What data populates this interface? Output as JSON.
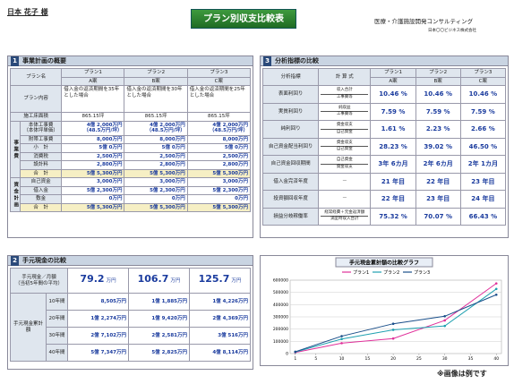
{
  "header": {
    "customer": "日本 花子 様",
    "title": "プラン別収支比較表",
    "tagline": "医療・介護施設開発コンサルティング",
    "company": "日本〇〇ビジネス株式会社",
    "footnote": "※画像は例です"
  },
  "s1": {
    "number": "1",
    "heading": "事業計画の概要",
    "name_label": "プラン名",
    "plans": [
      "プラン1",
      "プラン2",
      "プラン3"
    ],
    "codes": [
      "A案",
      "B案",
      "C案"
    ],
    "content_label": "プラン内容",
    "contents": [
      "借入金の返済期間を35年とした場合",
      "借入金の返済期間を30年とした場合",
      "借入金の返済期間を25年とした場合"
    ],
    "area_label": "施工床面積",
    "areas": [
      "865.15坪",
      "865.15坪",
      "865.15坪"
    ],
    "cost_group": "事業費",
    "cost_rows": [
      {
        "label": "本体工事費",
        "sublabel": "（本体坪単価）",
        "values": [
          "4億 2,000万円",
          "4億 2,000万円",
          "4億 2,000万円"
        ],
        "subvalues": [
          "（48.5万円/坪）",
          "（48.5万円/坪）",
          "（48.5万円/坪）"
        ]
      },
      {
        "label": "附帯工事費",
        "values": [
          "8,000万円",
          "8,000万円",
          "8,000万円"
        ]
      },
      {
        "label": "小　計",
        "values": [
          "5億 0万円",
          "5億 0万円",
          "5億 0万円"
        ]
      },
      {
        "label": "消費税",
        "values": [
          "2,500万円",
          "2,500万円",
          "2,500万円"
        ]
      },
      {
        "label": "設計料",
        "values": [
          "2,800万円",
          "2,800万円",
          "2,800万円"
        ]
      },
      {
        "label": "合　計",
        "values": [
          "5億 5,300万円",
          "5億 5,300万円",
          "5億 5,300万円"
        ]
      }
    ],
    "fund_group": "資金計画",
    "fund_rows": [
      {
        "label": "自己資金",
        "values": [
          "3,000万円",
          "3,000万円",
          "3,000万円"
        ]
      },
      {
        "label": "借入金",
        "values": [
          "5億 2,300万円",
          "5億 2,300万円",
          "5億 2,300万円"
        ]
      },
      {
        "label": "敷金",
        "values": [
          "0万円",
          "0万円",
          "0万円"
        ]
      },
      {
        "label": "合　計",
        "values": [
          "5億 5,300万円",
          "5億 5,300万円",
          "5億 5,300万円"
        ]
      }
    ]
  },
  "s2": {
    "number": "2",
    "heading": "手元現金の比較",
    "monthly_label": "手元現金／月額",
    "monthly_note": "（当初5年間の平均）",
    "monthly": [
      "79.2",
      "106.7",
      "125.7"
    ],
    "monthly_unit": "万円",
    "cum_label": "手元現金累計額",
    "cum_rows": [
      {
        "period": "10年間",
        "values": [
          "8,505万円",
          "1億 1,885万円",
          "1億 4,226万円"
        ]
      },
      {
        "period": "20年間",
        "values": [
          "1億 2,274万円",
          "1億 9,420万円",
          "2億 4,369万円"
        ]
      },
      {
        "period": "30年間",
        "values": [
          "2億 7,102万円",
          "2億 2,581万円",
          "3億 516万円"
        ]
      },
      {
        "period": "40年間",
        "values": [
          "5億 7,347万円",
          "5億 2,825万円",
          "4億 8,114万円"
        ]
      }
    ]
  },
  "s3": {
    "number": "3",
    "heading": "分析指標の比較",
    "header": [
      "分析指標",
      "計 算 式"
    ],
    "plans": [
      "プラン1",
      "プラン2",
      "プラン3"
    ],
    "codes": [
      "A案",
      "B案",
      "C案"
    ],
    "rows": [
      {
        "label": "表面利回り",
        "formula": [
          "収入合計",
          "工事費等"
        ],
        "values": [
          "10.46 %",
          "10.46 %",
          "10.46 %"
        ]
      },
      {
        "label": "実質利回り",
        "formula": [
          "純収益",
          "工事費等"
        ],
        "values": [
          "7.59 %",
          "7.59 %",
          "7.59 %"
        ]
      },
      {
        "label": "純利回り",
        "formula": [
          "資金収支",
          "自己資金"
        ],
        "values": [
          "1.61 %",
          "2.23 %",
          "2.66 %"
        ]
      },
      {
        "label": "自己資金配当利回り",
        "formula": [
          "資金収支",
          "自己資金"
        ],
        "values": [
          "28.23 %",
          "39.02 %",
          "46.50 %"
        ]
      },
      {
        "label": "自己資金回収期間",
        "formula": [
          "自己資金",
          "資金収支"
        ],
        "values": [
          "3年 6カ月",
          "2年 6カ月",
          "2年 1カ月"
        ]
      },
      {
        "label": "借入金完済年度",
        "formula": [
          "—"
        ],
        "values": [
          "21 年目",
          "22 年目",
          "23 年目"
        ]
      },
      {
        "label": "投資額回収年度",
        "formula": [
          "—"
        ],
        "values": [
          "22 年目",
          "23 年目",
          "24 年目"
        ]
      },
      {
        "label": "損益分岐稼働率",
        "formula": [
          "経常経費＋元金返済額",
          "満室時収入合計"
        ],
        "values": [
          "75.32 %",
          "70.07 %",
          "66.43 %"
        ]
      }
    ]
  },
  "chart_data": {
    "type": "line",
    "title": "手元現金累計額の比較グラフ",
    "x": [
      1,
      10,
      20,
      30,
      40
    ],
    "series": [
      {
        "name": "プラン1",
        "color": "#e0309a",
        "values": [
          9500,
          85050,
          122740,
          271020,
          573470
        ]
      },
      {
        "name": "プラン2",
        "color": "#1fa0b0",
        "values": [
          12800,
          118850,
          194200,
          225810,
          528250
        ]
      },
      {
        "name": "プラン3",
        "color": "#1a4f8a",
        "values": [
          15100,
          142260,
          243690,
          305160,
          481140
        ]
      }
    ],
    "xlim": [
      0,
      41
    ],
    "xticks": [
      1,
      5,
      10,
      15,
      20,
      25,
      30,
      35,
      40
    ],
    "ylim": [
      0,
      600000
    ],
    "yticks": [
      0,
      100000,
      200000,
      300000,
      400000,
      500000,
      600000
    ],
    "grid": true
  }
}
